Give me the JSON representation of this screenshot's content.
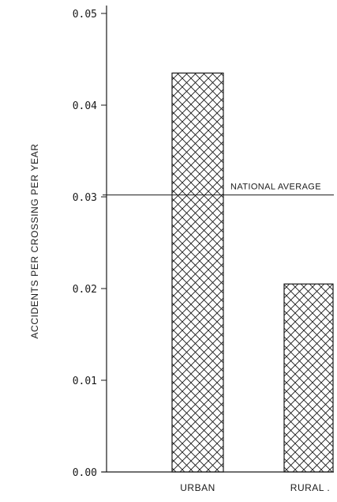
{
  "chart_data": {
    "type": "bar",
    "title": "",
    "xlabel": "",
    "ylabel": "ACCIDENTS PER CROSSING PER YEAR",
    "categories": [
      "URBAN",
      "RURAL ."
    ],
    "values": [
      0.0435,
      0.0205
    ],
    "ylim": [
      0,
      0.05
    ],
    "yticks": [
      "0.00",
      "0.01",
      "0.02",
      "0.03",
      "0.04",
      "0.05"
    ],
    "grid": false,
    "reference_line": {
      "label": "NATIONAL AVERAGE",
      "value": 0.0302
    },
    "bar_fill": "crosshatch",
    "colors": {
      "ink": "#1a1a1a",
      "background": "#ffffff"
    }
  }
}
